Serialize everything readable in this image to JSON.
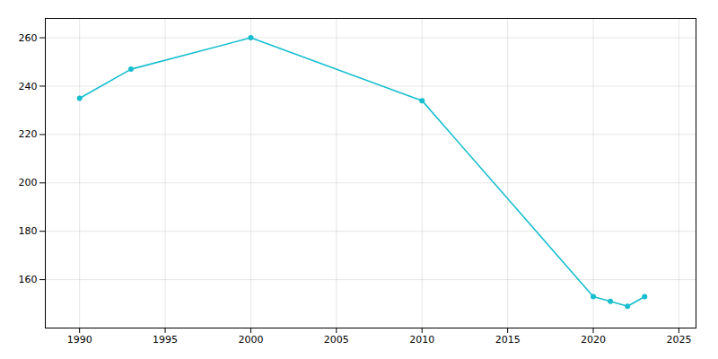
{
  "chart_data": {
    "type": "line",
    "x": [
      1990,
      1993,
      2000,
      2010,
      2020,
      2021,
      2022,
      2023
    ],
    "values": [
      235,
      247,
      260,
      234,
      153,
      151,
      149,
      153
    ],
    "color": "#17becf",
    "marker": "circle",
    "xlim": [
      1988,
      2026
    ],
    "ylim": [
      140,
      268
    ],
    "xticks": [
      1990,
      1995,
      2000,
      2005,
      2010,
      2015,
      2020,
      2025
    ],
    "yticks": [
      160,
      180,
      200,
      220,
      240,
      260
    ],
    "grid": true
  }
}
